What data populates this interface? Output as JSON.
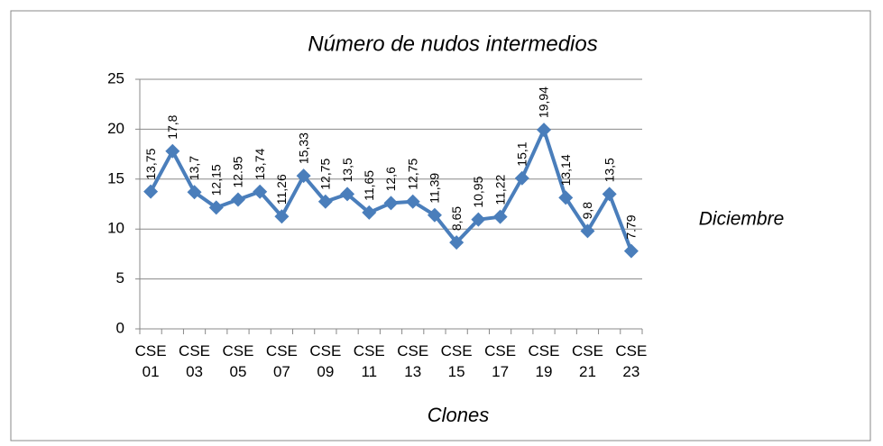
{
  "chart_data": {
    "type": "line",
    "title": "Número de nudos intermedios",
    "x_label": "Clones",
    "categories": [
      "CSE 01",
      null,
      "CSE 03",
      null,
      "CSE 05",
      null,
      "CSE 07",
      null,
      "CSE 09",
      null,
      "CSE 11",
      null,
      "CSE 13",
      null,
      "CSE 15",
      null,
      "CSE 17",
      null,
      "CSE 19",
      null,
      "CSE 21",
      null,
      "CSE 23"
    ],
    "series": [
      {
        "name": "Diciembre",
        "color": "#4a7ebb",
        "values": [
          13.75,
          17.8,
          13.7,
          12.15,
          12.95,
          13.74,
          11.26,
          15.33,
          12.75,
          13.5,
          11.65,
          12.6,
          12.75,
          11.39,
          8.65,
          10.95,
          11.22,
          15.1,
          19.94,
          13.14,
          9.8,
          13.5,
          7.79
        ],
        "value_labels": [
          "13,75",
          "17,8",
          "13,7",
          "12,15",
          "12.95",
          "13,74",
          "11,26",
          "15,33",
          "12,75",
          "13,5",
          "11,65",
          "12,6",
          "12,75",
          "11,39",
          "8,65",
          "10,95",
          "11,22",
          "15,1",
          "19,94",
          "13,14",
          "9,8",
          "13,5",
          "7.79"
        ]
      }
    ],
    "ylim": [
      0,
      25
    ],
    "yticks": [
      0,
      5,
      10,
      15,
      20,
      25
    ],
    "grid": true,
    "legend": "right"
  }
}
